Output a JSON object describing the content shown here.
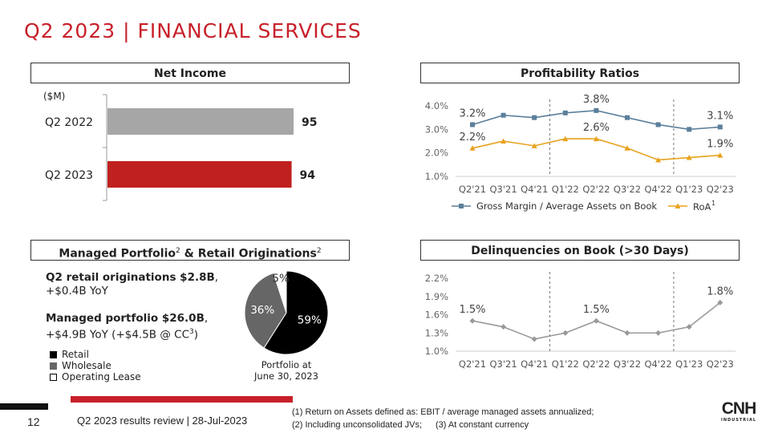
{
  "title": "Q2 2023 | FINANCIAL SERVICES",
  "panels": {
    "net_income": "Net Income",
    "profitability": "Profitability Ratios",
    "portfolio": "Managed Portfolio",
    "portfolio_sup": "2",
    "portfolio_amp": " & Retail Originations",
    "portfolio_sup2": "2",
    "delinquencies": "Delinquencies on Book (>30 Days)"
  },
  "portfolio_text": {
    "line1_bold": "Q2 retail originations $2.8B",
    "line1_rest": ",",
    "line2": "+$0.4B YoY",
    "line3_bold": "Managed portfolio $26.0B",
    "line3_rest": ",",
    "line4": "+$4.9B YoY (+$4.5B @ CC",
    "line4_sup": "3",
    "line4_end": ")"
  },
  "chart_data": [
    {
      "type": "bar",
      "orientation": "horizontal",
      "unit": "($M)",
      "categories": [
        "Q2 2022",
        "Q2 2023"
      ],
      "values": [
        95,
        94
      ],
      "colors": [
        "#a6a6a6",
        "#c0201f"
      ]
    },
    {
      "type": "line",
      "categories": [
        "Q2'21",
        "Q3'21",
        "Q4'21",
        "Q1'22",
        "Q2'22",
        "Q3'22",
        "Q4'22",
        "Q1'23",
        "Q2'23"
      ],
      "ylim": [
        1.0,
        4.0
      ],
      "yticks": [
        "1.0%",
        "2.0%",
        "3.0%",
        "4.0%"
      ],
      "series": [
        {
          "name": "Gross Margin / Average Assets on Book",
          "marker": "square",
          "color": "#5b7f9b",
          "values": [
            3.2,
            3.6,
            3.5,
            3.7,
            3.8,
            3.5,
            3.2,
            3.0,
            3.1
          ],
          "labels": {
            "0": "3.2%",
            "4": "3.8%",
            "8": "3.1%"
          }
        },
        {
          "name": "RoA",
          "name_sup": "1",
          "marker": "triangle",
          "color": "#e8a21e",
          "values": [
            2.2,
            2.5,
            2.3,
            2.6,
            2.6,
            2.2,
            1.7,
            1.8,
            1.9
          ],
          "labels": {
            "0": "2.2%",
            "4": "2.6%",
            "8": "1.9%"
          }
        }
      ],
      "dividers_after": [
        "Q4'21",
        "Q4'22"
      ],
      "legend": "bottom"
    },
    {
      "type": "pie",
      "slices": [
        {
          "name": "Retail",
          "value": 59,
          "label": "59%",
          "color": "#000000"
        },
        {
          "name": "Wholesale",
          "value": 36,
          "label": "36%",
          "color": "#666666"
        },
        {
          "name": "Operating Lease",
          "value": 5,
          "label": "5%",
          "color": "#ffffff"
        }
      ],
      "caption": [
        "Portfolio at",
        "June 30, 2023"
      ]
    },
    {
      "type": "line",
      "categories": [
        "Q2'21",
        "Q3'21",
        "Q4'21",
        "Q1'22",
        "Q2'22",
        "Q3'22",
        "Q4'22",
        "Q1'23",
        "Q2'23"
      ],
      "ylim": [
        1.0,
        2.2
      ],
      "yticks": [
        "1.0%",
        "1.3%",
        "1.6%",
        "1.9%",
        "2.2%"
      ],
      "series": [
        {
          "marker": "diamond",
          "color": "#999999",
          "values": [
            1.5,
            1.4,
            1.2,
            1.3,
            1.5,
            1.3,
            1.3,
            1.4,
            1.8
          ],
          "labels": {
            "0": "1.5%",
            "4": "1.5%",
            "8": "1.8%"
          }
        }
      ],
      "dividers_after": [
        "Q4'21",
        "Q4'22"
      ]
    }
  ],
  "footer": {
    "page": "12",
    "review": "Q2 2023 results review | 28-Jul-2023",
    "note1": "(1) Return on Assets defined as: EBIT / average managed assets annualized;",
    "note2": "(2) Including unconsolidated JVs;",
    "note3": "(3) At constant currency",
    "logo": "CNH",
    "logo_sub": "INDUSTRIAL"
  },
  "colors": {
    "brand_red": "#c8202a"
  }
}
